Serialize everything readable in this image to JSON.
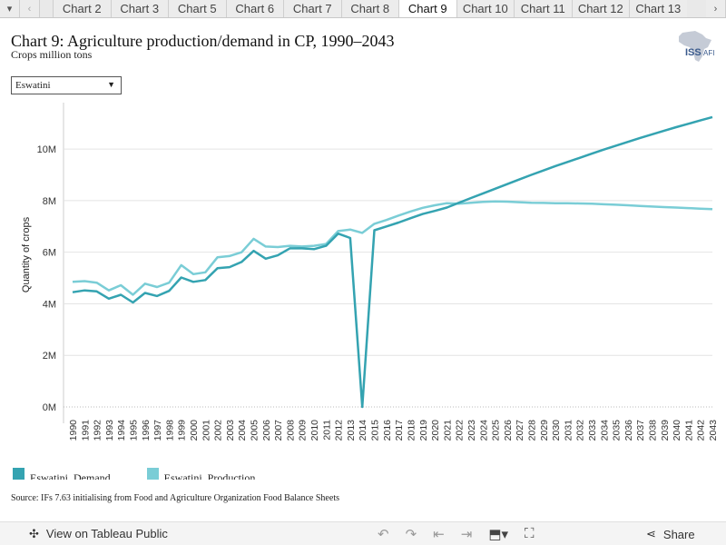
{
  "tabs": {
    "items": [
      "Chart 2",
      "Chart 3",
      "Chart 5",
      "Chart 6",
      "Chart 7",
      "Chart 8",
      "Chart 9",
      "Chart 10",
      "Chart 11",
      "Chart 12",
      "Chart 13"
    ],
    "active_index": 6
  },
  "header": {
    "title": "Chart 9: Agriculture production/demand in CP, 1990–2043",
    "subtitle": "Crops million tons",
    "logo_text": "ISS",
    "logo_sub": "AFI"
  },
  "filter": {
    "selected": "Eswatini"
  },
  "chart_data": {
    "type": "line",
    "ylabel": "Quantity of crops",
    "xlabel": "",
    "x": [
      1990,
      1991,
      1992,
      1993,
      1994,
      1995,
      1996,
      1997,
      1998,
      1999,
      2000,
      2001,
      2002,
      2003,
      2004,
      2005,
      2006,
      2007,
      2008,
      2009,
      2010,
      2011,
      2012,
      2013,
      2014,
      2015,
      2016,
      2017,
      2018,
      2019,
      2020,
      2021,
      2022,
      2023,
      2024,
      2025,
      2026,
      2027,
      2028,
      2029,
      2030,
      2031,
      2032,
      2033,
      2034,
      2035,
      2036,
      2037,
      2038,
      2039,
      2040,
      2041,
      2042,
      2043
    ],
    "y_ticks": [
      0,
      2000000,
      4000000,
      6000000,
      8000000,
      10000000
    ],
    "y_tick_labels": [
      "0M",
      "2M",
      "4M",
      "6M",
      "8M",
      "10M"
    ],
    "ylim": [
      0,
      11800000
    ],
    "grid": true,
    "legend_position": "bottom-left",
    "series": [
      {
        "name": "Eswatini_Demand",
        "color": "#34a3b1",
        "values": [
          4.45,
          4.52,
          4.48,
          4.2,
          4.35,
          4.05,
          4.42,
          4.3,
          4.5,
          5.02,
          4.85,
          4.92,
          5.38,
          5.42,
          5.62,
          6.05,
          5.75,
          5.88,
          6.15,
          6.15,
          6.12,
          6.25,
          6.72,
          6.55,
          0.0,
          6.85,
          7.0,
          7.15,
          7.32,
          7.48,
          7.6,
          7.73,
          7.92,
          8.1,
          8.28,
          8.46,
          8.64,
          8.82,
          9.0,
          9.17,
          9.34,
          9.5,
          9.66,
          9.82,
          9.98,
          10.13,
          10.28,
          10.43,
          10.57,
          10.71,
          10.85,
          10.98,
          11.11,
          11.24
        ]
      },
      {
        "name": "Eswatini_Production",
        "color": "#7acdd6",
        "values": [
          4.85,
          4.88,
          4.82,
          4.52,
          4.72,
          4.35,
          4.78,
          4.65,
          4.82,
          5.5,
          5.15,
          5.22,
          5.8,
          5.85,
          6.0,
          6.52,
          6.22,
          6.2,
          6.25,
          6.22,
          6.25,
          6.32,
          6.82,
          6.88,
          6.75,
          7.1,
          7.25,
          7.42,
          7.58,
          7.72,
          7.82,
          7.9,
          7.88,
          7.92,
          7.95,
          7.97,
          7.96,
          7.94,
          7.92,
          7.91,
          7.9,
          7.9,
          7.89,
          7.88,
          7.86,
          7.84,
          7.82,
          7.79,
          7.77,
          7.75,
          7.73,
          7.71,
          7.69,
          7.67
        ]
      }
    ]
  },
  "source": "Source: IFs 7.63 initialising from Food and Agriculture Organization Food Balance Sheets",
  "footer": {
    "view_link": "View on Tableau Public",
    "share": "Share"
  }
}
